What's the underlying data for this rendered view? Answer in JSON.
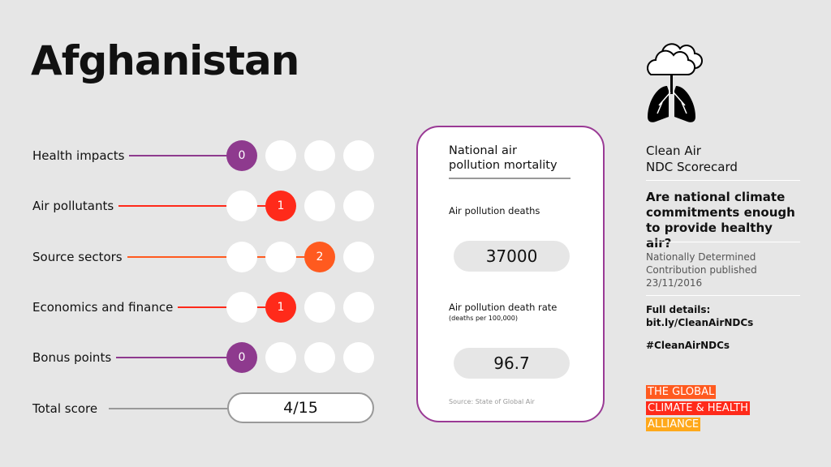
{
  "country": "Afghanistan",
  "colors": {
    "purple": "#8e3a8e",
    "red": "#ff2a1a",
    "orange": "#ff5a1f",
    "background": "#e6e6e6"
  },
  "categories": [
    {
      "label": "Health impacts",
      "score": 0,
      "color": "#8e3a8e"
    },
    {
      "label": "Air pollutants",
      "score": 1,
      "color": "#ff2a1a"
    },
    {
      "label": "Source sectors",
      "score": 2,
      "color": "#ff5a1f"
    },
    {
      "label": "Economics and finance",
      "score": 1,
      "color": "#ff2a1a"
    },
    {
      "label": "Bonus points",
      "score": 0,
      "color": "#8e3a8e"
    }
  ],
  "total": {
    "label": "Total score",
    "value": "4/15"
  },
  "card": {
    "heading": "National air pollution mortality",
    "deaths_label": "Air pollution deaths",
    "deaths": "37000",
    "rate_label": "Air pollution death rate",
    "rate_unit": "(deaths per 100,000)",
    "rate": "96.7",
    "source": "Source: State of Global Air"
  },
  "sidebar": {
    "icon": "cloud-lungs-icon",
    "title1": "Clean Air",
    "title2": "NDC Scorecard",
    "question": "Are national climate commitments enough to provide healthy air?",
    "ndc1": "Nationally Determined",
    "ndc2": "Contribution published",
    "ndc_date": "23/11/2016",
    "details_label": "Full details:",
    "link": "bit.ly/CleanAirNDCs",
    "hashtag": "#CleanAirNDCs",
    "logo": [
      "THE GLOBAL",
      "CLIMATE & HEALTH",
      "ALLIANCE"
    ]
  }
}
